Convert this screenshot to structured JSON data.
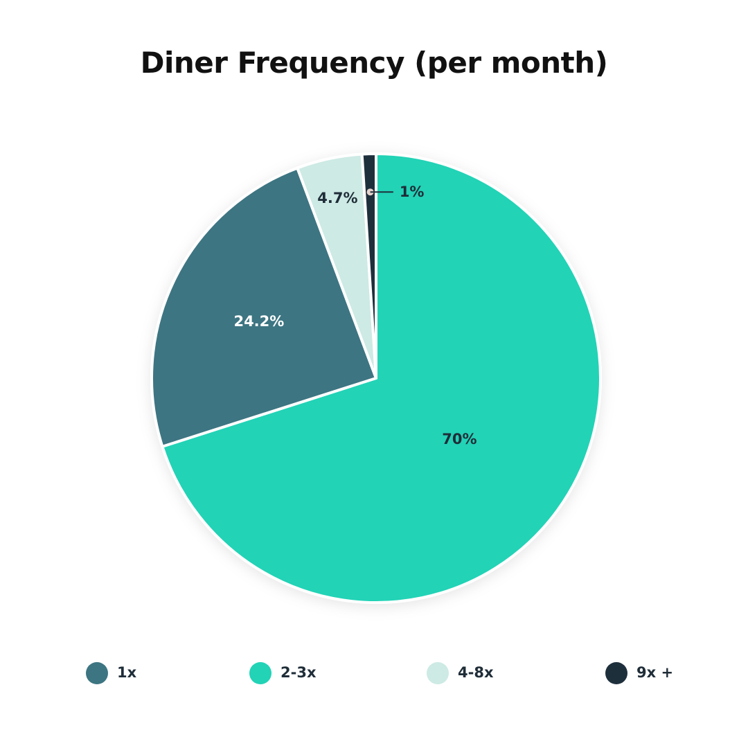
{
  "title": "Diner Frequency (per month)",
  "chart_data": {
    "type": "pie",
    "title": "Diner Frequency (per month)",
    "start_angle_deg": 90,
    "direction": "clockwise",
    "slices": [
      {
        "name": "2-3x",
        "value": 70,
        "label": "70%",
        "color": "#22d3b6",
        "label_color": "#1f2d38"
      },
      {
        "name": "1x",
        "value": 24.2,
        "label": "24.2%",
        "color": "#3d7582",
        "label_color": "#ffffff"
      },
      {
        "name": "4-8x",
        "value": 4.7,
        "label": "4.7%",
        "color": "#cdeae4",
        "label_color": "#1f2d38"
      },
      {
        "name": "9x +",
        "value": 1,
        "label": "1%",
        "color": "#1e2f3c",
        "label_color": "#1f2d38",
        "callout": true
      }
    ],
    "legend": {
      "position": "bottom",
      "items": [
        {
          "label": "1x",
          "color": "#3d7582"
        },
        {
          "label": "2-3x",
          "color": "#22d3b6"
        },
        {
          "label": "4-8x",
          "color": "#cdeae4"
        },
        {
          "label": "9x +",
          "color": "#1e2f3c"
        }
      ]
    }
  }
}
